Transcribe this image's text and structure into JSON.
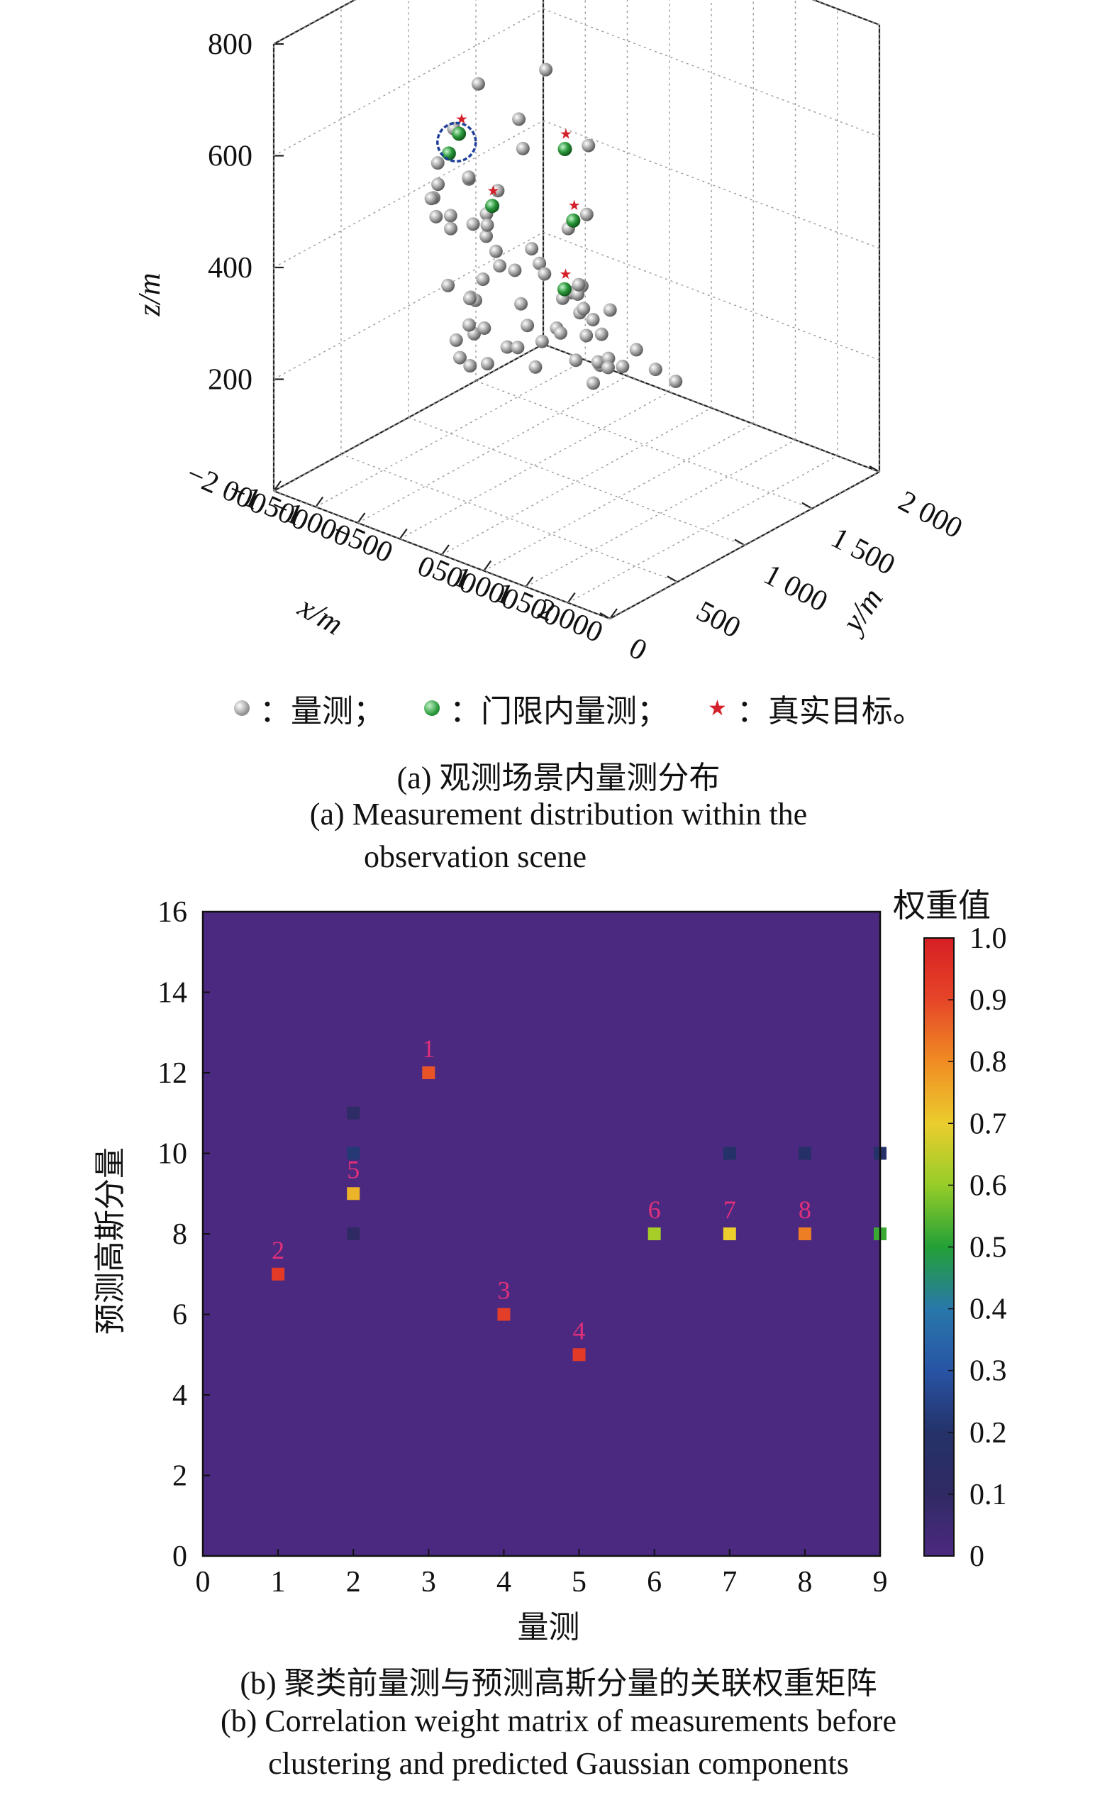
{
  "chart_data": [
    {
      "type": "scatter3d",
      "title": "(a) 观测场景内量测分布",
      "title_en_line1": "(a) Measurement distribution within the",
      "title_en_line2": "observation scene",
      "xlabel": "x/m",
      "ylabel": "y/m",
      "zlabel": "z/m",
      "xlim": [
        -2000,
        2000
      ],
      "ylim": [
        0,
        2000
      ],
      "zlim": [
        0,
        800
      ],
      "x_ticks": [
        "−2 000",
        "−1 500",
        "−1 000",
        "−500",
        "0",
        "500",
        "1 000",
        "1 500",
        "2 000"
      ],
      "y_ticks": [
        "0",
        "500",
        "1 000",
        "1 500",
        "2 000"
      ],
      "z_ticks": [
        "200",
        "400",
        "600",
        "800"
      ],
      "grid": true,
      "legend": {
        "position": "bottom",
        "items": [
          {
            "name": "：量测；",
            "marker": "gray-sphere"
          },
          {
            "name": "：门限内量测；",
            "marker": "green-sphere"
          },
          {
            "name": "：真实目标。",
            "marker": "red-star"
          }
        ]
      },
      "colors": {
        "measurement": "#a9a9a9",
        "gated": "#2e9a3e",
        "target": "#d4202a",
        "highlight_ring": "#1f3f9a"
      },
      "points": [
        [
          -1520,
          1500,
          790
        ],
        [
          -1040,
          1220,
          560
        ],
        [
          -1130,
          1120,
          440
        ],
        [
          -1200,
          1520,
          600
        ],
        [
          -1490,
          1200,
          600
        ],
        [
          -1590,
          1080,
          530
        ],
        [
          -1620,
          980,
          480
        ],
        [
          -1410,
          1080,
          450
        ],
        [
          -1280,
          1400,
          470
        ],
        [
          -1220,
          960,
          480
        ],
        [
          -1380,
          800,
          455
        ],
        [
          -1200,
          720,
          500
        ],
        [
          -1280,
          720,
          470
        ],
        [
          -1480,
          880,
          405
        ],
        [
          -1500,
          1000,
          390
        ],
        [
          -1200,
          1080,
          400
        ],
        [
          -1080,
          1340,
          310
        ],
        [
          -1380,
          1190,
          335
        ],
        [
          -1520,
          1180,
          350
        ],
        [
          -1480,
          1260,
          340
        ],
        [
          -1690,
          1120,
          340
        ],
        [
          -1050,
          700,
          330
        ],
        [
          -1100,
          900,
          280
        ],
        [
          -1080,
          780,
          220
        ],
        [
          -1440,
          1300,
          290
        ],
        [
          -1300,
          1240,
          280
        ],
        [
          -1280,
          1340,
          260
        ],
        [
          -1340,
          1560,
          240
        ],
        [
          -1540,
          1200,
          150
        ],
        [
          -1260,
          920,
          160
        ],
        [
          -1300,
          1020,
          130
        ],
        [
          -1060,
          1000,
          150
        ],
        [
          -1760,
          1300,
          140
        ],
        [
          -1780,
          1360,
          175
        ],
        [
          -1820,
          1440,
          200
        ],
        [
          -1880,
          1380,
          170
        ],
        [
          -1560,
          1560,
          155
        ],
        [
          -1900,
          1500,
          100
        ],
        [
          -1600,
          1760,
          180
        ],
        [
          -1320,
          1780,
          160
        ],
        [
          -1220,
          1800,
          175
        ],
        [
          -1740,
          1720,
          85
        ],
        [
          -1160,
          1620,
          180
        ],
        [
          -1180,
          1480,
          120
        ],
        [
          -1500,
          1960,
          90
        ],
        [
          -1820,
          1620,
          55
        ],
        [
          -1580,
          1680,
          25
        ],
        [
          -1420,
          1880,
          20
        ],
        [
          -1260,
          1960,
          10
        ],
        [
          -1120,
          2040,
          5
        ],
        [
          -1520,
          2020,
          40
        ],
        [
          -1920,
          1760,
          30
        ],
        [
          -1680,
          1900,
          60
        ],
        [
          -820,
          1520,
          220
        ],
        [
          -800,
          1380,
          170
        ],
        [
          -740,
          1620,
          90
        ],
        [
          -860,
          1660,
          40
        ],
        [
          -700,
          1880,
          80
        ],
        [
          -600,
          1960,
          40
        ],
        [
          -520,
          2060,
          10
        ],
        [
          -1000,
          1860,
          50
        ],
        [
          -1100,
          1920,
          20
        ],
        [
          -820,
          1760,
          160
        ],
        [
          -960,
          1720,
          140
        ],
        [
          -880,
          1600,
          180
        ],
        [
          -200,
          1200,
          440
        ],
        [
          -500,
          1400,
          520
        ],
        [
          -580,
          1300,
          380
        ],
        [
          -360,
          1240,
          300
        ],
        [
          -280,
          1360,
          200
        ]
      ],
      "gated_points": [
        [
          -1560,
          1100,
          520
        ],
        [
          -1520,
          1000,
          500
        ],
        [
          -1260,
          1160,
          400
        ],
        [
          -360,
          1200,
          420
        ],
        [
          -620,
          1300,
          520
        ],
        [
          -400,
          1160,
          300
        ]
      ],
      "targets": [
        [
          -1560,
          1120,
          540
        ],
        [
          -1280,
          1180,
          420
        ],
        [
          -380,
          1220,
          440
        ],
        [
          -640,
          1320,
          540
        ],
        [
          -420,
          1180,
          320
        ]
      ]
    },
    {
      "type": "heatmap",
      "title": "(b) 聚类前量测与预测高斯分量的关联权重矩阵",
      "title_en_line1": "(b) Correlation weight matrix of measurements before",
      "title_en_line2": "clustering and predicted Gaussian components",
      "xlabel": "量测",
      "ylabel": "预测高斯分量",
      "xlim": [
        0,
        9
      ],
      "ylim": [
        0,
        16
      ],
      "x_ticks": [
        0,
        1,
        2,
        3,
        4,
        5,
        6,
        7,
        8,
        9
      ],
      "y_ticks": [
        0,
        2,
        4,
        6,
        8,
        10,
        12,
        14,
        16
      ],
      "colorbar_label": "权重值",
      "colorbar_ticks": [
        "0",
        "0.1",
        "0.2",
        "0.3",
        "0.4",
        "0.5",
        "0.6",
        "0.7",
        "0.8",
        "0.9",
        "1.0"
      ],
      "clim": [
        0,
        1
      ],
      "background_value": 0,
      "cells": [
        {
          "x": 1,
          "y": 7,
          "value": 0.93,
          "label": "2"
        },
        {
          "x": 2,
          "y": 9,
          "value": 0.74,
          "label": "5"
        },
        {
          "x": 2,
          "y": 10,
          "value": 0.22,
          "label": ""
        },
        {
          "x": 2,
          "y": 11,
          "value": 0.12,
          "label": ""
        },
        {
          "x": 2,
          "y": 8,
          "value": 0.1,
          "label": ""
        },
        {
          "x": 3,
          "y": 12,
          "value": 0.88,
          "label": "1"
        },
        {
          "x": 4,
          "y": 6,
          "value": 0.92,
          "label": "3"
        },
        {
          "x": 5,
          "y": 5,
          "value": 0.93,
          "label": "4"
        },
        {
          "x": 6,
          "y": 8,
          "value": 0.62,
          "label": "6"
        },
        {
          "x": 7,
          "y": 8,
          "value": 0.7,
          "label": "7"
        },
        {
          "x": 7,
          "y": 10,
          "value": 0.2,
          "label": ""
        },
        {
          "x": 8,
          "y": 8,
          "value": 0.82,
          "label": "8"
        },
        {
          "x": 8,
          "y": 10,
          "value": 0.18,
          "label": ""
        },
        {
          "x": 9,
          "y": 8,
          "value": 0.52,
          "label": ""
        },
        {
          "x": 9,
          "y": 10,
          "value": 0.2,
          "label": ""
        }
      ]
    }
  ]
}
